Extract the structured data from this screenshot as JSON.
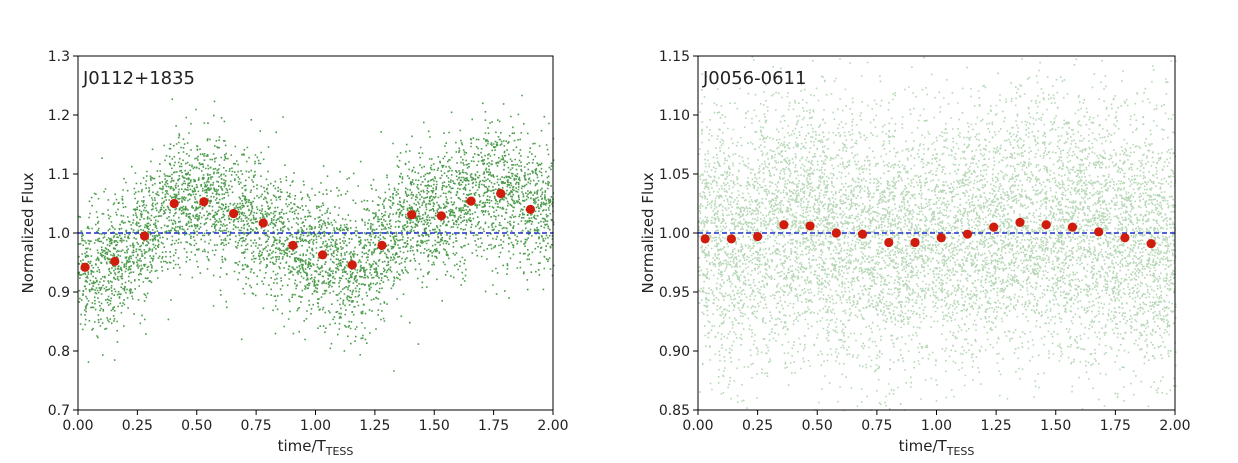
{
  "chart_data": [
    {
      "type": "scatter",
      "title": "J0112+1835",
      "xlabel": "time/T",
      "xlabel_sub": "TESS",
      "ylabel": "Normalized Flux",
      "xlim": [
        0.0,
        2.0
      ],
      "ylim": [
        0.7,
        1.3
      ],
      "x_ticks": [
        "0.00",
        "0.25",
        "0.50",
        "0.75",
        "1.00",
        "1.25",
        "1.50",
        "1.75",
        "2.00"
      ],
      "y_ticks": [
        "0.7",
        "0.8",
        "0.9",
        "1.0",
        "1.1",
        "1.2",
        "1.3"
      ],
      "reference_line": {
        "y": 1.0,
        "style": "dashed",
        "color": "#1f2fd0"
      },
      "raw_points": {
        "color": "#2e8b2e",
        "count": 5000,
        "approx": true
      },
      "series": [
        {
          "color": "#d01c0c",
          "x": [
            0.03,
            0.155,
            0.28,
            0.405,
            0.53,
            0.655,
            0.78,
            0.905,
            1.03,
            1.155,
            1.28,
            1.405,
            1.53,
            1.655,
            1.78,
            1.905
          ],
          "y": [
            0.942,
            0.952,
            0.995,
            1.05,
            1.053,
            1.033,
            1.017,
            0.979,
            0.963,
            0.946,
            0.979,
            1.031,
            1.029,
            1.054,
            1.067,
            1.04
          ]
        }
      ],
      "grid": false,
      "legend": "none"
    },
    {
      "type": "scatter",
      "title": "J0056-0611",
      "xlabel": "time/T",
      "xlabel_sub": "TESS",
      "ylabel": "Normalized Flux",
      "xlim": [
        0.0,
        2.0
      ],
      "ylim": [
        0.85,
        1.15
      ],
      "x_ticks": [
        "0.00",
        "0.25",
        "0.50",
        "0.75",
        "1.00",
        "1.25",
        "1.50",
        "1.75",
        "2.00"
      ],
      "y_ticks": [
        "0.85",
        "0.90",
        "0.95",
        "1.00",
        "1.05",
        "1.10",
        "1.15"
      ],
      "reference_line": {
        "y": 1.0,
        "style": "dashed",
        "color": "#1f2fd0"
      },
      "raw_points": {
        "color": "#2e8b2e",
        "count": 9000,
        "approx": true
      },
      "series": [
        {
          "color": "#d01c0c",
          "x": [
            0.03,
            0.14,
            0.25,
            0.36,
            0.47,
            0.58,
            0.69,
            0.8,
            0.91,
            1.02,
            1.13,
            1.24,
            1.35,
            1.46,
            1.57,
            1.68,
            1.79,
            1.9
          ],
          "y": [
            0.995,
            0.995,
            0.997,
            1.007,
            1.006,
            1.0,
            0.999,
            0.992,
            0.992,
            0.996,
            0.999,
            1.005,
            1.009,
            1.007,
            1.005,
            1.001,
            0.996,
            0.991
          ]
        }
      ],
      "grid": false,
      "legend": "none"
    }
  ]
}
